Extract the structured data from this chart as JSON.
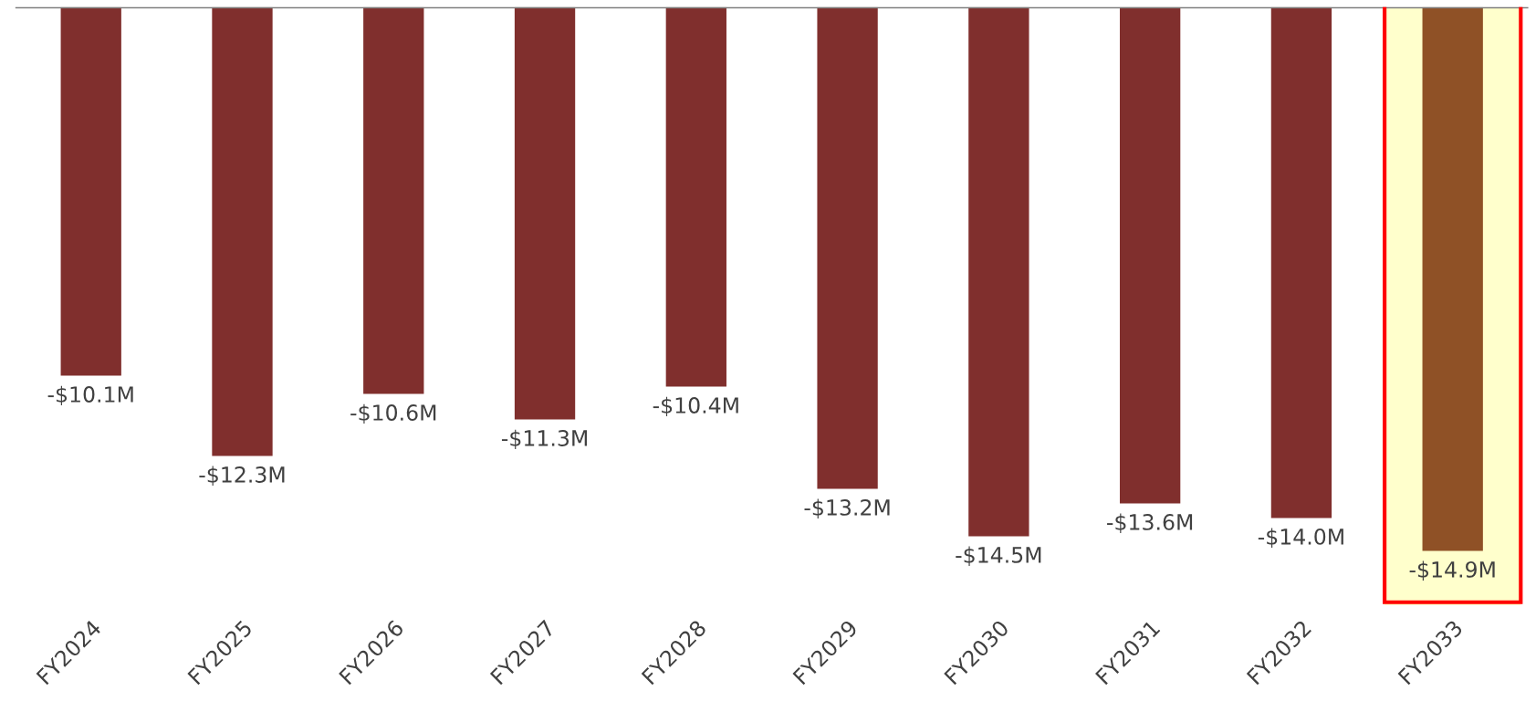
{
  "chart_data": {
    "type": "bar",
    "categories": [
      "FY2024",
      "FY2025",
      "FY2026",
      "FY2027",
      "FY2028",
      "FY2029",
      "FY2030",
      "FY2031",
      "FY2032",
      "FY2033"
    ],
    "values": [
      -10.1,
      -12.3,
      -10.6,
      -11.3,
      -10.4,
      -13.2,
      -14.5,
      -13.6,
      -14.0,
      -14.9
    ],
    "value_labels": [
      "-$10.1M",
      "-$12.3M",
      "-$10.6M",
      "-$11.3M",
      "-$10.4M",
      "-$13.2M",
      "-$14.5M",
      "-$13.6M",
      "-$14.0M",
      "-$14.9M"
    ],
    "colors": [
      "#802f2d",
      "#802f2d",
      "#802f2d",
      "#802f2d",
      "#802f2d",
      "#802f2d",
      "#802f2d",
      "#802f2d",
      "#802f2d",
      "#8f5126"
    ],
    "bands": [
      {
        "axis": "x",
        "from": "FY2033",
        "to": "FY2033",
        "color": "#ffffcc"
      }
    ],
    "grid": false,
    "legend": false
  }
}
